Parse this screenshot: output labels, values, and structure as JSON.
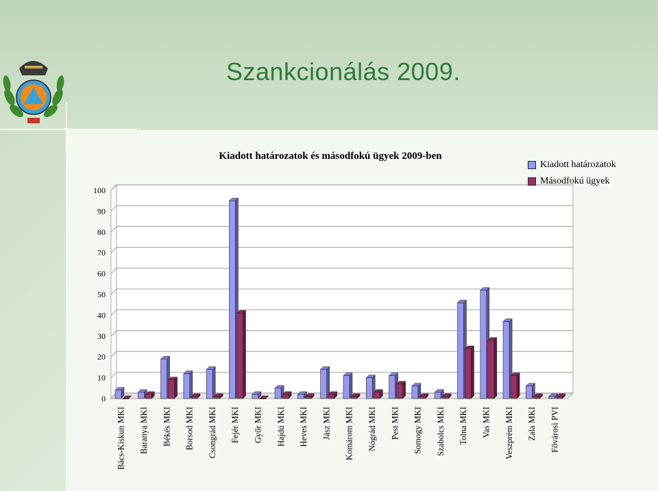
{
  "slide": {
    "title": "Szankcionálás 2009."
  },
  "colors": {
    "series1": "#9898f0",
    "series2": "#993366",
    "title": "#2f7a3a"
  },
  "chart_data": {
    "type": "bar",
    "title": "Kiadott határozatok és másodfokú ügyek 2009-ben",
    "categories": [
      "Bács-Kiskun MKI",
      "Baranya MKI",
      "Békés MKI",
      "Borsod MKI",
      "Csongrád MKI",
      "Fejér MKI",
      "Győr MKI",
      "Hajdú MKI",
      "Heves MKI",
      "Jász MKI",
      "Komárom MKI",
      "Nógrád MKI",
      "Pest MKI",
      "Somogy MKI",
      "Szabolcs MKI",
      "Tolna MKI",
      "Vas MKI",
      "Veszprém MKI",
      "Zala MKI",
      "Fővárosi PVI"
    ],
    "series": [
      {
        "name": "Kiadott határozatok",
        "values": [
          4,
          3,
          19,
          12,
          14,
          95,
          2,
          5,
          2,
          14,
          11,
          10,
          11,
          6,
          3,
          46,
          52,
          37,
          6,
          1
        ]
      },
      {
        "name": "Másodfokú ügyek",
        "values": [
          0,
          2,
          9,
          1,
          1,
          41,
          0,
          2,
          1,
          2,
          1,
          3,
          7,
          1,
          1,
          24,
          28,
          11,
          1,
          1
        ]
      }
    ],
    "yticks": [
      "0",
      "10",
      "20",
      "30",
      "40",
      "50",
      "60",
      "70",
      "80",
      "90",
      "100"
    ],
    "ylim": [
      0,
      100
    ],
    "legend_position": "top-right",
    "grid": true
  }
}
